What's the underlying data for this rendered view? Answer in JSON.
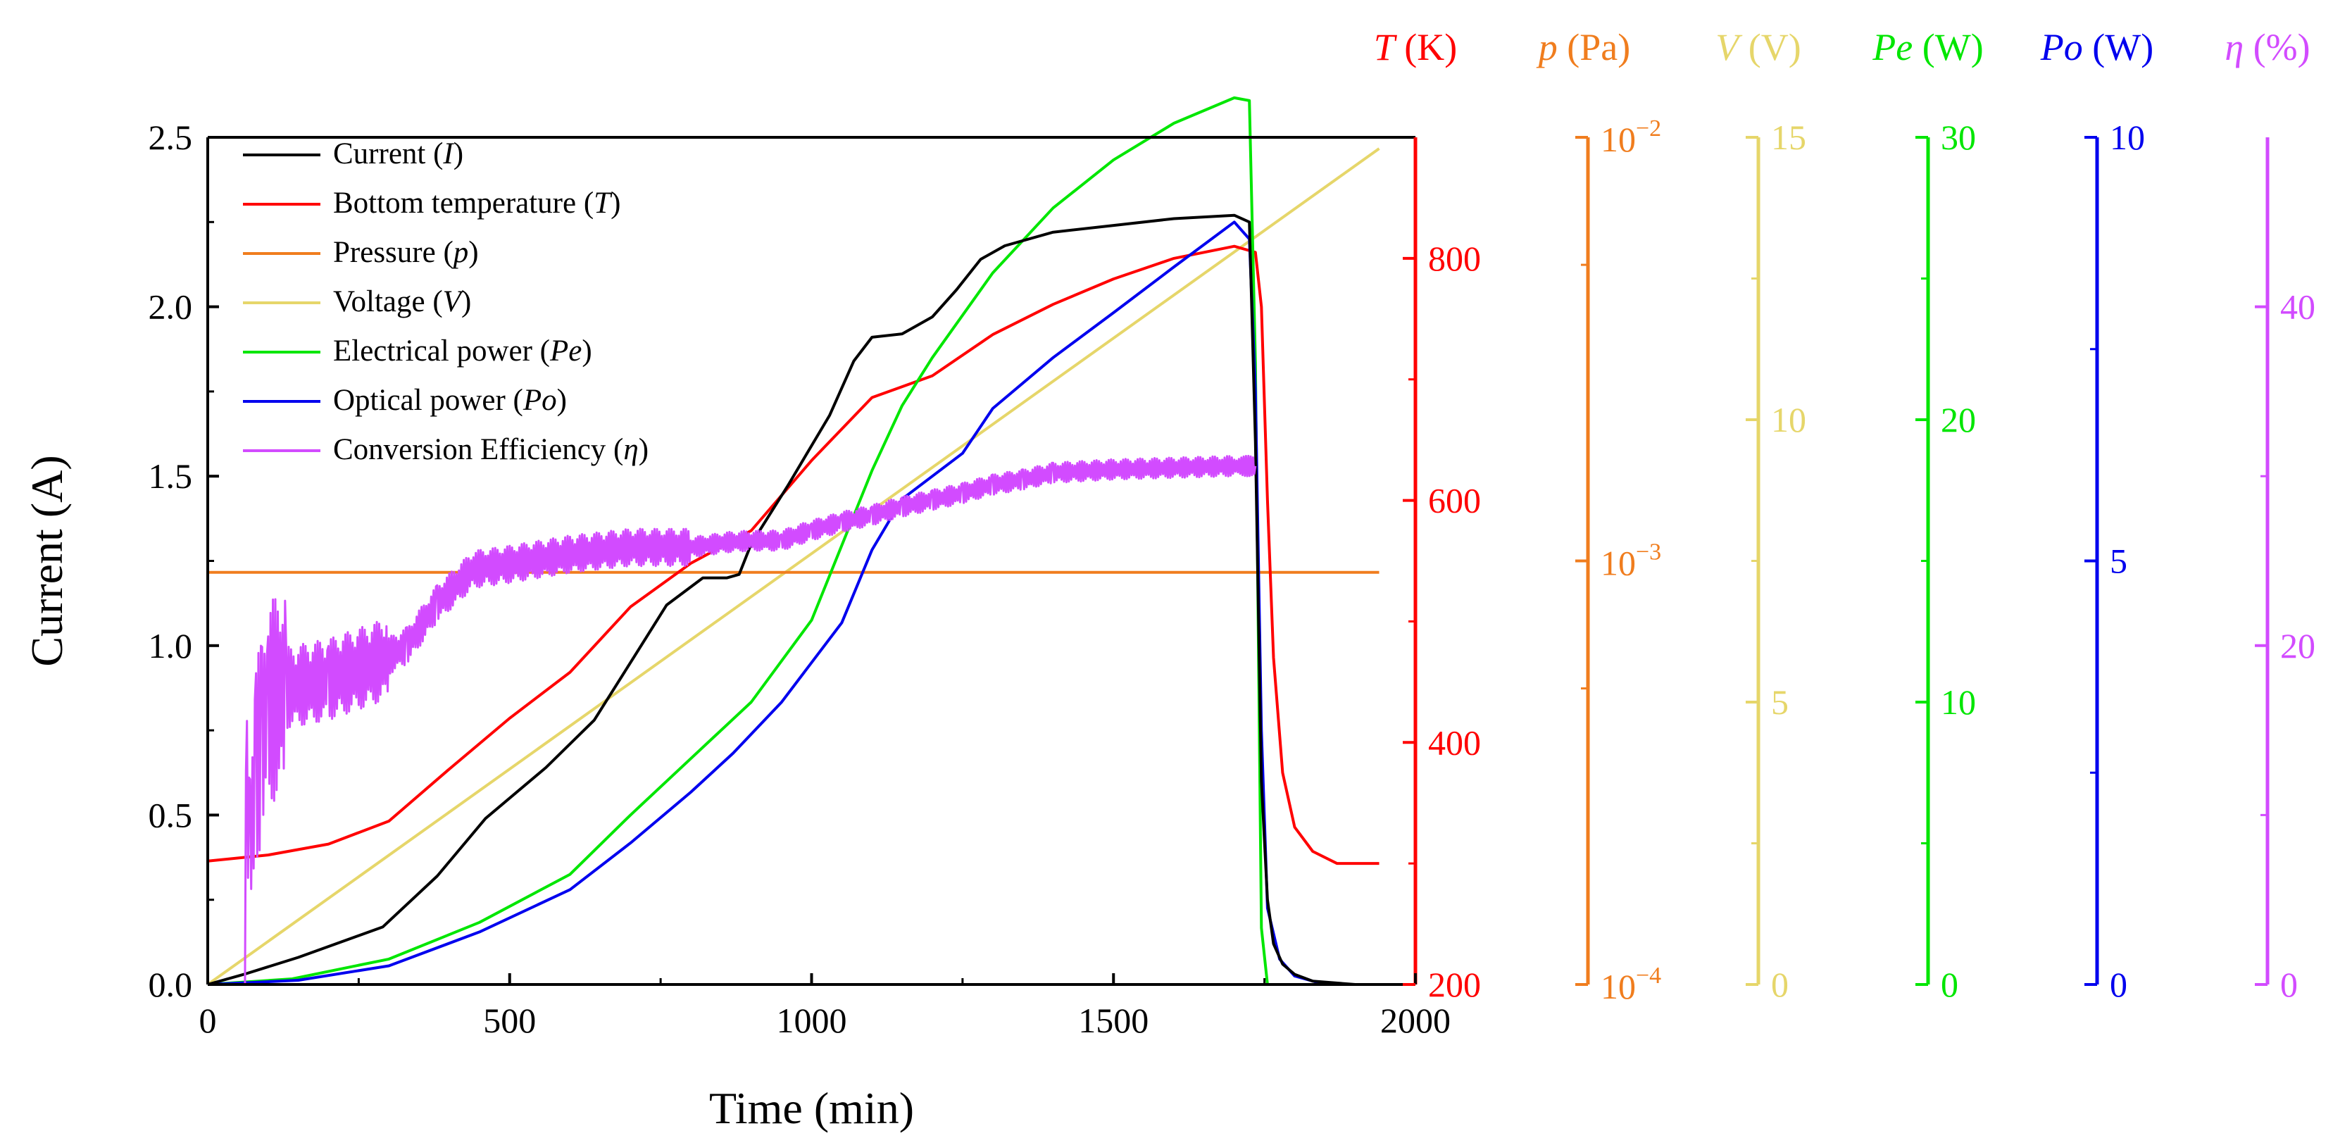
{
  "chart_data": {
    "type": "line",
    "title": "",
    "xlabel": "Time (min)",
    "xlim": [
      0,
      2000
    ],
    "xticks": [
      "0",
      "500",
      "1000",
      "1500",
      "2000"
    ],
    "grid": false,
    "legend_position": "top-left",
    "axes": {
      "I": {
        "title": "Current (A)",
        "range": [
          0,
          2.5
        ],
        "scale": "linear",
        "ticks": [
          "0.0",
          "0.5",
          "1.0",
          "1.5",
          "2.0",
          "2.5"
        ],
        "color": "#000000"
      },
      "T": {
        "symbol": "T",
        "unit": "(K)",
        "range": [
          200,
          900
        ],
        "scale": "linear",
        "ticks": [
          "200",
          "400",
          "600",
          "800"
        ],
        "color": "#ff0000"
      },
      "p": {
        "symbol": "p",
        "unit": "(Pa)",
        "range": [
          0.0001,
          0.01
        ],
        "scale": "log",
        "ticks": [
          "−4",
          "−3",
          "−2"
        ],
        "tick_base": "10",
        "color": "#f07d1e"
      },
      "V": {
        "symbol": "V",
        "unit": "(V)",
        "range": [
          0,
          15
        ],
        "scale": "linear",
        "ticks": [
          "0",
          "5",
          "10",
          "15"
        ],
        "color": "#e6d66a"
      },
      "Pe": {
        "symbol": "Pe",
        "unit": "(W)",
        "range": [
          0,
          30
        ],
        "scale": "linear",
        "ticks": [
          "0",
          "10",
          "20",
          "30"
        ],
        "color": "#00e600"
      },
      "Po": {
        "symbol": "Po",
        "unit": "(W)",
        "range": [
          0,
          10
        ],
        "scale": "linear",
        "ticks": [
          "0",
          "5",
          "10"
        ],
        "color": "#0000ee"
      },
      "eta": {
        "symbol": "η",
        "unit": "(%)",
        "range": [
          0,
          50
        ],
        "scale": "linear",
        "ticks": [
          "0",
          "20",
          "40"
        ],
        "color": "#d24bff"
      }
    },
    "series": [
      {
        "name": "Current",
        "symbol": "I",
        "axis": "I",
        "color": "#000000",
        "noise": 0,
        "x": [
          0,
          60,
          150,
          290,
          380,
          460,
          560,
          640,
          700,
          760,
          820,
          860,
          880,
          900,
          960,
          1030,
          1070,
          1100,
          1150,
          1200,
          1240,
          1280,
          1320,
          1400,
          1500,
          1600,
          1700,
          1725,
          1735,
          1745,
          1755,
          1765,
          1780,
          1800,
          1830,
          1900,
          1940
        ],
        "y": [
          0.0,
          0.03,
          0.08,
          0.17,
          0.32,
          0.49,
          0.64,
          0.78,
          0.95,
          1.12,
          1.2,
          1.2,
          1.21,
          1.3,
          1.47,
          1.68,
          1.84,
          1.91,
          1.92,
          1.97,
          2.05,
          2.14,
          2.18,
          2.22,
          2.24,
          2.26,
          2.27,
          2.25,
          1.6,
          0.6,
          0.25,
          0.12,
          0.06,
          0.03,
          0.01,
          0.0,
          0.0
        ]
      },
      {
        "name": "Bottom temperature",
        "symbol": "T",
        "axis": "T",
        "color": "#ff0000",
        "noise": 0,
        "x": [
          0,
          100,
          200,
          300,
          400,
          500,
          600,
          700,
          800,
          900,
          1000,
          1100,
          1200,
          1300,
          1400,
          1500,
          1600,
          1700,
          1735,
          1745,
          1755,
          1765,
          1780,
          1800,
          1830,
          1870,
          1940
        ],
        "y": [
          302,
          307,
          316,
          335,
          378,
          420,
          458,
          512,
          548,
          575,
          633,
          685,
          703,
          737,
          762,
          783,
          800,
          810,
          805,
          760,
          600,
          470,
          375,
          330,
          310,
          300,
          300
        ]
      },
      {
        "name": "Pressure",
        "symbol": "p",
        "axis": "p",
        "color": "#f07d1e",
        "noise": 0,
        "x": [
          0,
          1940
        ],
        "y": [
          0.00094,
          0.00094
        ]
      },
      {
        "name": "Voltage",
        "symbol": "V",
        "axis": "V",
        "color": "#e6d66a",
        "noise": 0,
        "x": [
          0,
          1940
        ],
        "y": [
          0.0,
          14.8
        ]
      },
      {
        "name": "Electrical power",
        "symbol": "Pe",
        "axis": "Pe",
        "color": "#00e600",
        "noise": 0,
        "x": [
          0,
          140,
          300,
          450,
          600,
          700,
          800,
          900,
          1000,
          1100,
          1150,
          1200,
          1300,
          1400,
          1500,
          1600,
          1700,
          1725,
          1735,
          1745,
          1755
        ],
        "y": [
          0.0,
          0.2,
          0.9,
          2.2,
          3.9,
          6.0,
          8.0,
          10.0,
          12.9,
          18.2,
          20.5,
          22.2,
          25.2,
          27.5,
          29.2,
          30.5,
          31.4,
          31.3,
          22.0,
          2.0,
          0.0
        ]
      },
      {
        "name": "Optical power",
        "symbol": "Po",
        "axis": "Po",
        "color": "#0000ee",
        "noise": 0,
        "x": [
          0,
          150,
          300,
          450,
          600,
          700,
          800,
          870,
          950,
          1050,
          1100,
          1150,
          1200,
          1250,
          1300,
          1400,
          1500,
          1600,
          1700,
          1725,
          1735,
          1745,
          1755,
          1775,
          1800,
          1850,
          1940
        ],
        "y": [
          0.0,
          0.05,
          0.22,
          0.62,
          1.12,
          1.67,
          2.27,
          2.73,
          3.33,
          4.27,
          5.13,
          5.73,
          6.0,
          6.27,
          6.8,
          7.4,
          7.93,
          8.47,
          9.0,
          8.8,
          7.0,
          3.0,
          0.9,
          0.3,
          0.1,
          0.0,
          0.0
        ]
      },
      {
        "name": "Conversion Efficiency",
        "symbol": "η",
        "axis": "eta",
        "color": "#d24bff",
        "noise": 1,
        "x": [
          60,
          65,
          70,
          80,
          90,
          100,
          130,
          200,
          280,
          330,
          380,
          440,
          500,
          600,
          700,
          800,
          860,
          900,
          950,
          1000,
          1050,
          1100,
          1150,
          1200,
          1250,
          1300,
          1350,
          1400,
          1500,
          1600,
          1700,
          1735
        ],
        "y": [
          0.0,
          11.0,
          8.0,
          13.0,
          14.5,
          16.5,
          17.5,
          18.0,
          19.0,
          20.0,
          22.5,
          24.5,
          24.8,
          25.4,
          25.8,
          25.8,
          26.1,
          26.2,
          26.2,
          26.8,
          27.3,
          27.7,
          28.2,
          28.6,
          29.0,
          29.5,
          29.8,
          30.2,
          30.4,
          30.5,
          30.6,
          30.6
        ]
      }
    ],
    "legend": [
      {
        "label": "Current",
        "sym": "I",
        "color": "#000000"
      },
      {
        "label": "Bottom temperature",
        "sym": "T",
        "color": "#ff0000"
      },
      {
        "label": "Pressure",
        "sym": "p",
        "color": "#f07d1e"
      },
      {
        "label": "Voltage",
        "sym": "V",
        "color": "#e6d66a"
      },
      {
        "label": "Electrical power",
        "sym": "Pe",
        "color": "#00e600"
      },
      {
        "label": "Optical power",
        "sym": "Po",
        "color": "#0000ee"
      },
      {
        "label": "Conversion Efficiency",
        "sym": "η",
        "color": "#d24bff"
      }
    ]
  }
}
